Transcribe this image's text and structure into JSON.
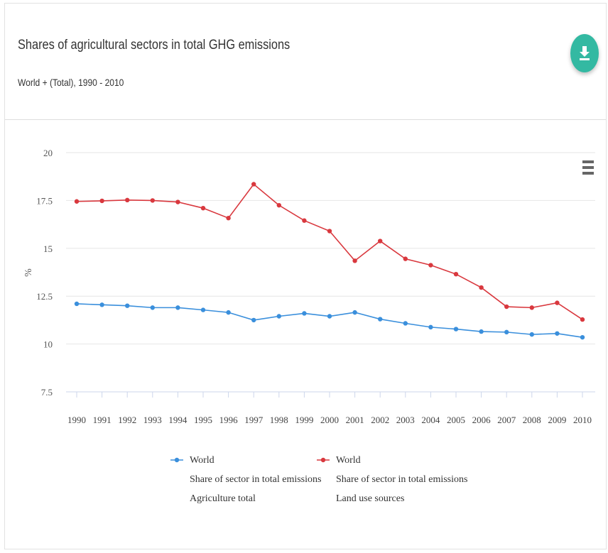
{
  "header": {
    "title": "Shares of agricultural sectors in total GHG emissions",
    "subtitle": "World + (Total), 1990 - 2010"
  },
  "icons": {
    "download": "download-icon",
    "menu": "hamburger-menu-icon"
  },
  "colors": {
    "accent": "#33b9a2",
    "series_blue": "#3a8fdc",
    "series_red": "#d9383e"
  },
  "chart_data": {
    "type": "line",
    "title": "Shares of agricultural sectors in total GHG emissions",
    "subtitle": "World + (Total), 1990 - 2010",
    "ylabel": "%",
    "xlabel": "",
    "ylim": [
      7.5,
      20
    ],
    "yticks": [
      "20",
      "17.5",
      "15",
      "12.5",
      "10",
      "7.5"
    ],
    "x": [
      "1990",
      "1991",
      "1992",
      "1993",
      "1994",
      "1995",
      "1996",
      "1997",
      "1998",
      "1999",
      "2000",
      "2001",
      "2002",
      "2003",
      "2004",
      "2005",
      "2006",
      "2007",
      "2008",
      "2009",
      "2010"
    ],
    "grid": true,
    "legend_position": "bottom",
    "series": [
      {
        "name": "World",
        "legend_lines": [
          "World",
          "Share of sector in total emissions",
          "Agriculture total"
        ],
        "color": "#3a8fdc",
        "values": [
          12.1,
          12.05,
          12.0,
          11.9,
          11.9,
          11.78,
          11.65,
          11.25,
          11.45,
          11.6,
          11.45,
          11.65,
          11.3,
          11.08,
          10.88,
          10.78,
          10.65,
          10.62,
          10.5,
          10.55,
          10.35
        ]
      },
      {
        "name": "World",
        "legend_lines": [
          "World",
          "Share of sector in total emissions",
          "Land use sources"
        ],
        "color": "#d9383e",
        "values": [
          17.45,
          17.48,
          17.52,
          17.5,
          17.42,
          17.1,
          16.58,
          18.35,
          17.25,
          16.45,
          15.9,
          14.35,
          15.38,
          14.45,
          14.12,
          13.65,
          12.95,
          11.95,
          11.9,
          12.15,
          11.28
        ]
      }
    ]
  }
}
